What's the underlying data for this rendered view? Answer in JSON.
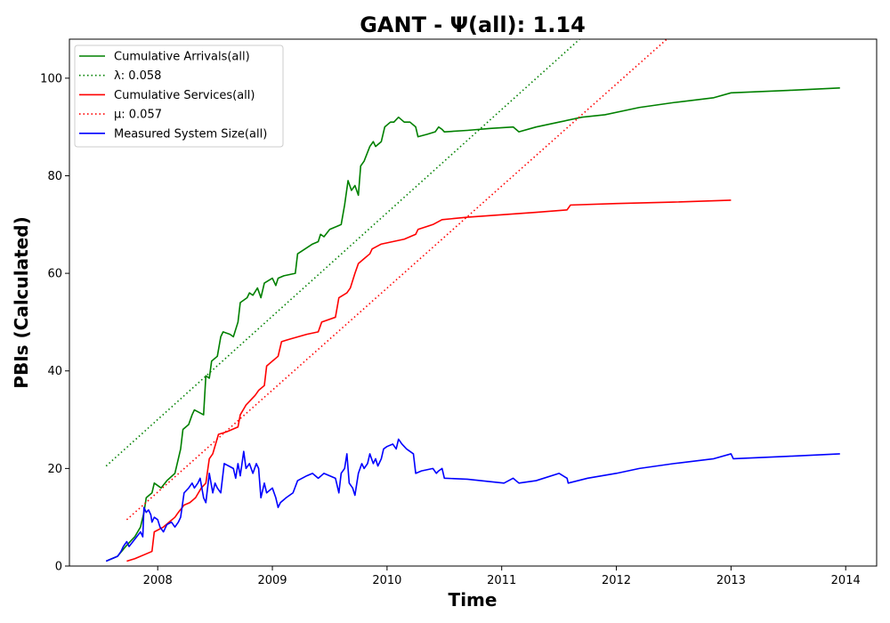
{
  "chart_data": {
    "type": "line",
    "title": "GANT -  Ψ(all): 1.14",
    "xlabel": "Time",
    "ylabel": "PBIs (Calculated)",
    "xlim": [
      2007.23,
      2014.27
    ],
    "ylim": [
      0,
      108
    ],
    "xticks": [
      2008,
      2009,
      2010,
      2011,
      2012,
      2013,
      2014
    ],
    "yticks": [
      0,
      20,
      40,
      60,
      80,
      100
    ],
    "grid": false,
    "legend_position": "top-left",
    "series": [
      {
        "name": "Cumulative Arrivals(all)",
        "style": "solid",
        "color": "#008000",
        "points": [
          [
            2007.55,
            1
          ],
          [
            2007.65,
            2
          ],
          [
            2007.72,
            4
          ],
          [
            2007.8,
            6
          ],
          [
            2007.85,
            8
          ],
          [
            2007.88,
            11
          ],
          [
            2007.9,
            14
          ],
          [
            2007.95,
            15
          ],
          [
            2007.97,
            17
          ],
          [
            2008.03,
            16
          ],
          [
            2008.08,
            17.5
          ],
          [
            2008.15,
            19
          ],
          [
            2008.18,
            22
          ],
          [
            2008.2,
            24
          ],
          [
            2008.22,
            28
          ],
          [
            2008.27,
            29
          ],
          [
            2008.3,
            31
          ],
          [
            2008.32,
            32
          ],
          [
            2008.36,
            31.5
          ],
          [
            2008.4,
            31
          ],
          [
            2008.42,
            39
          ],
          [
            2008.45,
            38.5
          ],
          [
            2008.47,
            42
          ],
          [
            2008.52,
            43
          ],
          [
            2008.55,
            47
          ],
          [
            2008.57,
            48
          ],
          [
            2008.63,
            47.5
          ],
          [
            2008.66,
            47
          ],
          [
            2008.7,
            50
          ],
          [
            2008.72,
            54
          ],
          [
            2008.78,
            55
          ],
          [
            2008.8,
            56
          ],
          [
            2008.83,
            55.5
          ],
          [
            2008.87,
            57
          ],
          [
            2008.9,
            55
          ],
          [
            2008.93,
            58
          ],
          [
            2009.0,
            59
          ],
          [
            2009.03,
            57.5
          ],
          [
            2009.05,
            59
          ],
          [
            2009.1,
            59.5
          ],
          [
            2009.2,
            60
          ],
          [
            2009.22,
            64
          ],
          [
            2009.35,
            66
          ],
          [
            2009.4,
            66.5
          ],
          [
            2009.42,
            68
          ],
          [
            2009.45,
            67.5
          ],
          [
            2009.5,
            69
          ],
          [
            2009.6,
            70
          ],
          [
            2009.63,
            74
          ],
          [
            2009.66,
            79
          ],
          [
            2009.69,
            77
          ],
          [
            2009.72,
            78
          ],
          [
            2009.75,
            76
          ],
          [
            2009.77,
            82
          ],
          [
            2009.8,
            83
          ],
          [
            2009.85,
            86
          ],
          [
            2009.88,
            87
          ],
          [
            2009.9,
            86
          ],
          [
            2009.95,
            87
          ],
          [
            2009.98,
            90
          ],
          [
            2010.03,
            91
          ],
          [
            2010.06,
            91
          ],
          [
            2010.1,
            92
          ],
          [
            2010.15,
            91
          ],
          [
            2010.2,
            91
          ],
          [
            2010.25,
            90
          ],
          [
            2010.27,
            88
          ],
          [
            2010.35,
            88.5
          ],
          [
            2010.42,
            89
          ],
          [
            2010.45,
            90
          ],
          [
            2010.48,
            89.5
          ],
          [
            2010.5,
            89
          ],
          [
            2010.7,
            89.3
          ],
          [
            2010.9,
            89.7
          ],
          [
            2011.1,
            90
          ],
          [
            2011.15,
            89
          ],
          [
            2011.3,
            90
          ],
          [
            2011.5,
            91
          ],
          [
            2011.7,
            92
          ],
          [
            2011.9,
            92.5
          ],
          [
            2012.2,
            94
          ],
          [
            2012.5,
            95
          ],
          [
            2012.85,
            96
          ],
          [
            2013.0,
            97
          ],
          [
            2013.5,
            97.5
          ],
          [
            2013.95,
            98
          ]
        ]
      },
      {
        "name": "λ: 0.058",
        "style": "dotted",
        "color": "#008000",
        "points": [
          [
            2007.55,
            20.5
          ],
          [
            2011.68,
            108
          ]
        ]
      },
      {
        "name": "Cumulative Services(all)",
        "style": "solid",
        "color": "#ff0000",
        "points": [
          [
            2007.73,
            1
          ],
          [
            2007.8,
            1.5
          ],
          [
            2007.9,
            2.5
          ],
          [
            2007.95,
            3
          ],
          [
            2007.97,
            7
          ],
          [
            2008.05,
            8
          ],
          [
            2008.1,
            9
          ],
          [
            2008.15,
            10
          ],
          [
            2008.18,
            11
          ],
          [
            2008.23,
            12.5
          ],
          [
            2008.28,
            13
          ],
          [
            2008.33,
            14
          ],
          [
            2008.38,
            16
          ],
          [
            2008.42,
            17
          ],
          [
            2008.45,
            22
          ],
          [
            2008.48,
            23
          ],
          [
            2008.53,
            27
          ],
          [
            2008.6,
            27.5
          ],
          [
            2008.65,
            28
          ],
          [
            2008.7,
            28.5
          ],
          [
            2008.72,
            31
          ],
          [
            2008.77,
            33
          ],
          [
            2008.85,
            35
          ],
          [
            2008.88,
            36
          ],
          [
            2008.93,
            37
          ],
          [
            2008.95,
            41
          ],
          [
            2009.0,
            42
          ],
          [
            2009.05,
            43
          ],
          [
            2009.08,
            46
          ],
          [
            2009.15,
            46.5
          ],
          [
            2009.3,
            47.5
          ],
          [
            2009.4,
            48
          ],
          [
            2009.43,
            50
          ],
          [
            2009.55,
            51
          ],
          [
            2009.58,
            55
          ],
          [
            2009.65,
            56
          ],
          [
            2009.68,
            57
          ],
          [
            2009.72,
            60
          ],
          [
            2009.75,
            62
          ],
          [
            2009.8,
            63
          ],
          [
            2009.85,
            64
          ],
          [
            2009.87,
            65
          ],
          [
            2009.95,
            66
          ],
          [
            2010.05,
            66.5
          ],
          [
            2010.15,
            67
          ],
          [
            2010.25,
            68
          ],
          [
            2010.27,
            69
          ],
          [
            2010.4,
            70
          ],
          [
            2010.48,
            71
          ],
          [
            2010.7,
            71.5
          ],
          [
            2011.0,
            72
          ],
          [
            2011.3,
            72.5
          ],
          [
            2011.57,
            73
          ],
          [
            2011.6,
            74
          ],
          [
            2012.0,
            74.3
          ],
          [
            2012.5,
            74.6
          ],
          [
            2013.0,
            75
          ]
        ]
      },
      {
        "name": "μ: 0.057",
        "style": "dotted",
        "color": "#ff0000",
        "points": [
          [
            2007.73,
            9.5
          ],
          [
            2012.44,
            108
          ]
        ]
      },
      {
        "name": "Measured System Size(all)",
        "style": "solid",
        "color": "#0000ff",
        "points": [
          [
            2007.55,
            1
          ],
          [
            2007.6,
            1.5
          ],
          [
            2007.65,
            2
          ],
          [
            2007.68,
            3
          ],
          [
            2007.7,
            4
          ],
          [
            2007.73,
            5
          ],
          [
            2007.75,
            4
          ],
          [
            2007.8,
            5.5
          ],
          [
            2007.85,
            7
          ],
          [
            2007.87,
            6
          ],
          [
            2007.88,
            12
          ],
          [
            2007.9,
            11
          ],
          [
            2007.92,
            11.5
          ],
          [
            2007.94,
            10.5
          ],
          [
            2007.95,
            9
          ],
          [
            2007.97,
            10
          ],
          [
            2008.0,
            9.5
          ],
          [
            2008.02,
            8
          ],
          [
            2008.05,
            7
          ],
          [
            2008.08,
            8.5
          ],
          [
            2008.12,
            9
          ],
          [
            2008.15,
            8
          ],
          [
            2008.18,
            9
          ],
          [
            2008.2,
            10
          ],
          [
            2008.23,
            15
          ],
          [
            2008.27,
            16
          ],
          [
            2008.3,
            17
          ],
          [
            2008.32,
            16
          ],
          [
            2008.35,
            17
          ],
          [
            2008.37,
            18
          ],
          [
            2008.4,
            14
          ],
          [
            2008.42,
            13
          ],
          [
            2008.45,
            19
          ],
          [
            2008.48,
            15
          ],
          [
            2008.5,
            17
          ],
          [
            2008.52,
            16
          ],
          [
            2008.55,
            15
          ],
          [
            2008.58,
            21
          ],
          [
            2008.62,
            20.5
          ],
          [
            2008.66,
            20
          ],
          [
            2008.68,
            18
          ],
          [
            2008.7,
            21
          ],
          [
            2008.72,
            18.5
          ],
          [
            2008.75,
            23.5
          ],
          [
            2008.77,
            20
          ],
          [
            2008.8,
            21
          ],
          [
            2008.83,
            19
          ],
          [
            2008.86,
            21
          ],
          [
            2008.88,
            20
          ],
          [
            2008.9,
            14
          ],
          [
            2008.93,
            17
          ],
          [
            2008.95,
            15
          ],
          [
            2009.0,
            16
          ],
          [
            2009.03,
            14
          ],
          [
            2009.05,
            12
          ],
          [
            2009.07,
            13
          ],
          [
            2009.12,
            14
          ],
          [
            2009.18,
            15
          ],
          [
            2009.22,
            17.5
          ],
          [
            2009.3,
            18.5
          ],
          [
            2009.35,
            19
          ],
          [
            2009.4,
            18
          ],
          [
            2009.45,
            19
          ],
          [
            2009.5,
            18.5
          ],
          [
            2009.55,
            18
          ],
          [
            2009.58,
            15
          ],
          [
            2009.6,
            19
          ],
          [
            2009.63,
            20
          ],
          [
            2009.65,
            23
          ],
          [
            2009.67,
            17
          ],
          [
            2009.7,
            16
          ],
          [
            2009.72,
            14.5
          ],
          [
            2009.75,
            19
          ],
          [
            2009.78,
            21
          ],
          [
            2009.8,
            20
          ],
          [
            2009.83,
            21
          ],
          [
            2009.85,
            23
          ],
          [
            2009.88,
            21
          ],
          [
            2009.9,
            22
          ],
          [
            2009.92,
            20.5
          ],
          [
            2009.95,
            22
          ],
          [
            2009.97,
            24
          ],
          [
            2010.0,
            24.5
          ],
          [
            2010.05,
            25
          ],
          [
            2010.08,
            24
          ],
          [
            2010.1,
            26
          ],
          [
            2010.13,
            25
          ],
          [
            2010.17,
            24
          ],
          [
            2010.2,
            23.5
          ],
          [
            2010.23,
            23
          ],
          [
            2010.25,
            19
          ],
          [
            2010.3,
            19.5
          ],
          [
            2010.4,
            20
          ],
          [
            2010.43,
            19
          ],
          [
            2010.45,
            19.5
          ],
          [
            2010.48,
            20
          ],
          [
            2010.5,
            18
          ],
          [
            2010.7,
            17.8
          ],
          [
            2010.9,
            17.3
          ],
          [
            2011.02,
            17
          ],
          [
            2011.1,
            18
          ],
          [
            2011.15,
            17
          ],
          [
            2011.3,
            17.5
          ],
          [
            2011.5,
            19
          ],
          [
            2011.57,
            18
          ],
          [
            2011.58,
            17
          ],
          [
            2011.75,
            18
          ],
          [
            2012.0,
            19
          ],
          [
            2012.2,
            20
          ],
          [
            2012.5,
            21
          ],
          [
            2012.85,
            22
          ],
          [
            2013.0,
            23
          ],
          [
            2013.02,
            22
          ],
          [
            2013.5,
            22.5
          ],
          [
            2013.95,
            23
          ]
        ]
      }
    ]
  }
}
